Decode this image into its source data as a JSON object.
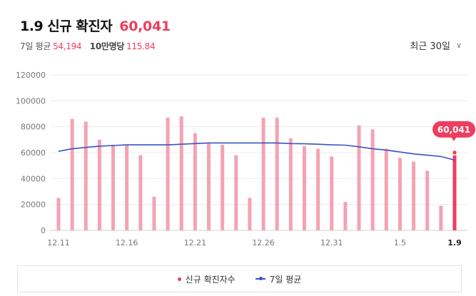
{
  "header": {
    "title": "1.9 신규 확진자",
    "count": "60,041",
    "avg_label": "7일 평균",
    "avg_value": "54,194",
    "per100k_label": "10만명당",
    "per100k_value": "115.84"
  },
  "range_selector": {
    "label": "최근 30일",
    "icon": "chevron-down-icon"
  },
  "legend": {
    "daily": "신규 확진자수",
    "avg": "7일 평균"
  },
  "colors": {
    "bar": "#f4a3b3",
    "bar_highlight": "#ee3e5f",
    "avg_line": "#3a53c2",
    "grid": "#ececec"
  },
  "chart_data": {
    "type": "bar",
    "title": "1.9 신규 확진자",
    "categories": [
      "12.11",
      "12.12",
      "12.13",
      "12.14",
      "12.15",
      "12.16",
      "12.17",
      "12.18",
      "12.19",
      "12.20",
      "12.21",
      "12.22",
      "12.23",
      "12.24",
      "12.25",
      "12.26",
      "12.27",
      "12.28",
      "12.29",
      "12.30",
      "12.31",
      "1.1",
      "1.2",
      "1.3",
      "1.4",
      "1.5",
      "1.6",
      "1.7",
      "1.8",
      "1.9"
    ],
    "x_tick_labels": [
      "12.11",
      "12.16",
      "12.21",
      "12.26",
      "12.31",
      "1.5",
      "1.9"
    ],
    "y_ticks": [
      "0",
      "20000",
      "40000",
      "60000",
      "80000",
      "100000",
      "120000"
    ],
    "ylim": [
      0,
      120000
    ],
    "grid": true,
    "legend_position": "bottom",
    "highlight_label": "60,041",
    "series": [
      {
        "name": "신규 확진자수",
        "type": "bar",
        "values": [
          25000,
          86000,
          84000,
          70000,
          66000,
          66000,
          58000,
          26000,
          87000,
          88000,
          75000,
          67000,
          66000,
          58000,
          25000,
          87000,
          87000,
          71000,
          65000,
          63000,
          57000,
          22000,
          81000,
          78000,
          63000,
          56000,
          53000,
          46000,
          19000,
          60041
        ]
      },
      {
        "name": "7일 평균",
        "type": "line",
        "values": [
          61000,
          63000,
          64000,
          65000,
          65500,
          66000,
          66000,
          66000,
          66000,
          66500,
          67000,
          67500,
          67500,
          67500,
          67500,
          67500,
          67500,
          67000,
          66800,
          66500,
          66000,
          65800,
          64500,
          63000,
          62000,
          60500,
          59000,
          58000,
          57000,
          54194
        ]
      }
    ]
  }
}
